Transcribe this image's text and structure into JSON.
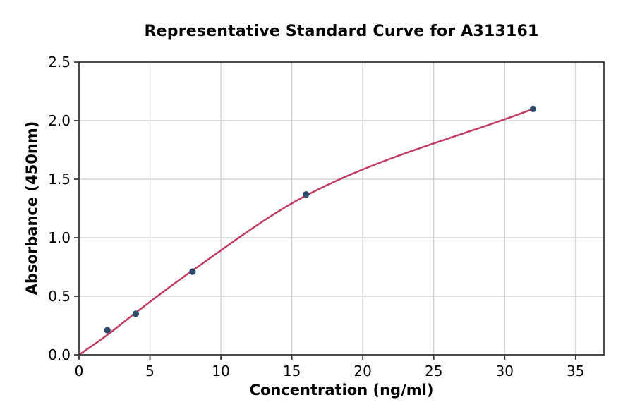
{
  "chart_data": {
    "type": "scatter",
    "title": "Representative Standard Curve for A313161",
    "xlabel": "Concentration (ng/ml)",
    "ylabel": "Absorbance (450nm)",
    "x": [
      2,
      4,
      8,
      16,
      32
    ],
    "y": [
      0.21,
      0.35,
      0.71,
      1.37,
      2.1
    ],
    "fitted_curve": {
      "x": [
        0,
        2,
        4,
        8,
        16,
        32
      ],
      "y": [
        0.0,
        0.17,
        0.36,
        0.72,
        1.36,
        2.1
      ]
    },
    "xlim": [
      0,
      37
    ],
    "ylim": [
      0,
      2.5
    ],
    "x_ticks": [
      "0",
      "5",
      "10",
      "15",
      "20",
      "25",
      "30",
      "35"
    ],
    "y_ticks": [
      "0.0",
      "0.5",
      "1.0",
      "1.5",
      "2.0",
      "2.5"
    ],
    "grid": true,
    "legend_position": "none",
    "colors": {
      "curve": "#c23b63",
      "marker": "#2e4a6b",
      "grid": "#cccccc",
      "spine": "#3a3a3a",
      "tick_text": "#000000",
      "background": "#ffffff"
    }
  }
}
